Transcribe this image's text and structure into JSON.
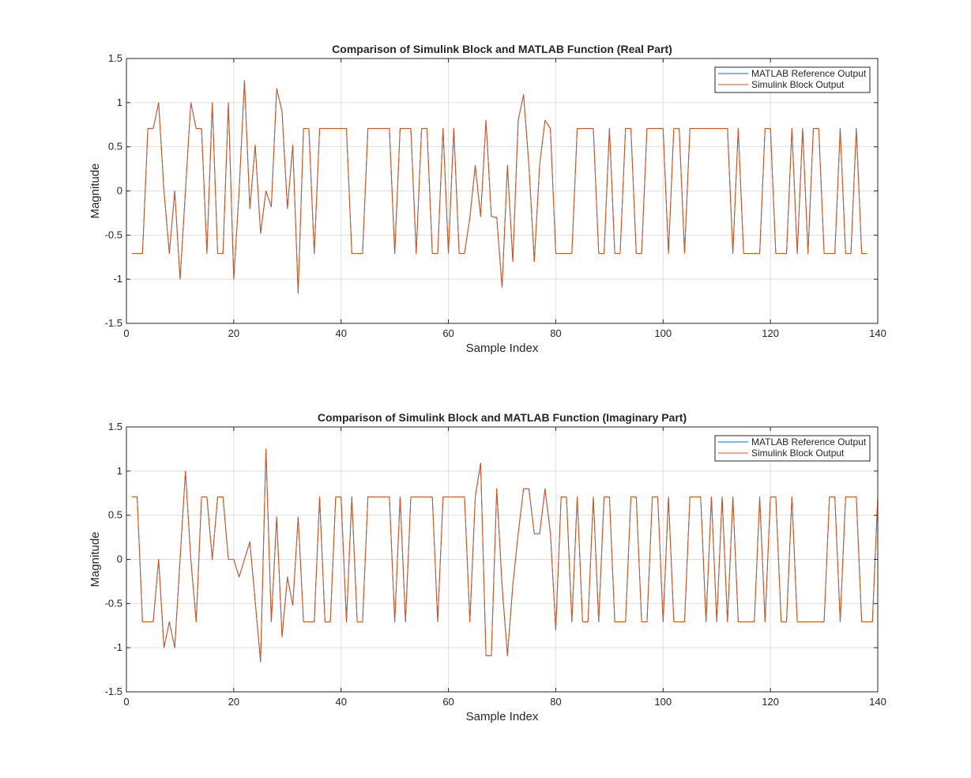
{
  "chart_data": [
    {
      "type": "line",
      "title": "Comparison of Simulink Block and MATLAB Function (Real Part)",
      "xlabel": "Sample Index",
      "ylabel": "Magnitude",
      "xlim": [
        0,
        140
      ],
      "ylim": [
        -1.5,
        1.5
      ],
      "xticks": [
        "0",
        "20",
        "40",
        "60",
        "80",
        "100",
        "120",
        "140"
      ],
      "yticks": [
        "-1.5",
        "-1",
        "-0.5",
        "0",
        "0.5",
        "1",
        "1.5"
      ],
      "grid": true,
      "legend_position": "top-right",
      "x_start": 1,
      "x_step": 1,
      "series": [
        {
          "name": "MATLAB Reference Output",
          "color": "#0072BD",
          "values": [
            -0.707,
            -0.707,
            -0.707,
            0.707,
            0.707,
            1,
            0,
            -0.707,
            0,
            -1,
            0,
            1,
            0.707,
            0.707,
            -0.707,
            1,
            -0.707,
            -0.707,
            1,
            -1,
            0,
            1.25,
            -0.2,
            0.52,
            -0.48,
            0,
            -0.18,
            1.16,
            0.9,
            -0.2,
            0.52,
            -1.16,
            0.707,
            0.707,
            -0.707,
            0.707,
            0.707,
            0.707,
            0.707,
            0.707,
            0.707,
            -0.707,
            -0.707,
            -0.707,
            0.707,
            0.707,
            0.707,
            0.707,
            0.707,
            -0.707,
            0.707,
            0.707,
            0.707,
            -0.707,
            0.707,
            0.707,
            -0.707,
            -0.707,
            0.707,
            -0.707,
            0.707,
            -0.707,
            -0.707,
            -0.3,
            0.29,
            -0.29,
            0.8,
            -0.29,
            -0.3,
            -1.09,
            0.29,
            -0.8,
            0.8,
            1.09,
            0.29,
            -0.8,
            0.3,
            0.8,
            0.707,
            -0.707,
            -0.707,
            -0.707,
            -0.707,
            0.707,
            0.707,
            0.707,
            0.707,
            -0.707,
            -0.707,
            0.707,
            -0.707,
            -0.707,
            0.707,
            0.707,
            -0.707,
            -0.707,
            0.707,
            0.707,
            0.707,
            0.707,
            -0.707,
            0.707,
            0.707,
            -0.707,
            0.707,
            0.707,
            0.707,
            0.707,
            0.707,
            0.707,
            0.707,
            0.707,
            -0.707,
            0.707,
            -0.707,
            -0.707,
            -0.707,
            -0.707,
            0.707,
            0.707,
            -0.707,
            -0.707,
            -0.707,
            0.707,
            -0.707,
            0.707,
            -0.707,
            0.707,
            0.707,
            -0.707,
            -0.707,
            -0.707,
            0.707,
            -0.707,
            -0.707,
            0.707,
            -0.707,
            -0.707
          ]
        },
        {
          "name": "Simulink Block Output",
          "color": "#D95319",
          "values": [
            -0.707,
            -0.707,
            -0.707,
            0.707,
            0.707,
            1,
            0,
            -0.707,
            0,
            -1,
            0,
            1,
            0.707,
            0.707,
            -0.707,
            1,
            -0.707,
            -0.707,
            1,
            -1,
            0,
            1.25,
            -0.2,
            0.52,
            -0.48,
            0,
            -0.18,
            1.16,
            0.9,
            -0.2,
            0.52,
            -1.16,
            0.707,
            0.707,
            -0.707,
            0.707,
            0.707,
            0.707,
            0.707,
            0.707,
            0.707,
            -0.707,
            -0.707,
            -0.707,
            0.707,
            0.707,
            0.707,
            0.707,
            0.707,
            -0.707,
            0.707,
            0.707,
            0.707,
            -0.707,
            0.707,
            0.707,
            -0.707,
            -0.707,
            0.707,
            -0.707,
            0.707,
            -0.707,
            -0.707,
            -0.3,
            0.29,
            -0.29,
            0.8,
            -0.29,
            -0.3,
            -1.09,
            0.29,
            -0.8,
            0.8,
            1.09,
            0.29,
            -0.8,
            0.3,
            0.8,
            0.707,
            -0.707,
            -0.707,
            -0.707,
            -0.707,
            0.707,
            0.707,
            0.707,
            0.707,
            -0.707,
            -0.707,
            0.707,
            -0.707,
            -0.707,
            0.707,
            0.707,
            -0.707,
            -0.707,
            0.707,
            0.707,
            0.707,
            0.707,
            -0.707,
            0.707,
            0.707,
            -0.707,
            0.707,
            0.707,
            0.707,
            0.707,
            0.707,
            0.707,
            0.707,
            0.707,
            -0.707,
            0.707,
            -0.707,
            -0.707,
            -0.707,
            -0.707,
            0.707,
            0.707,
            -0.707,
            -0.707,
            -0.707,
            0.707,
            -0.707,
            0.707,
            -0.707,
            0.707,
            0.707,
            -0.707,
            -0.707,
            -0.707,
            0.707,
            -0.707,
            -0.707,
            0.707,
            -0.707,
            -0.707
          ]
        }
      ]
    },
    {
      "type": "line",
      "title": "Comparison of Simulink Block and MATLAB Function (Imaginary Part)",
      "xlabel": "Sample Index",
      "ylabel": "Magnitude",
      "xlim": [
        0,
        140
      ],
      "ylim": [
        -1.5,
        1.5
      ],
      "xticks": [
        "0",
        "20",
        "40",
        "60",
        "80",
        "100",
        "120",
        "140"
      ],
      "yticks": [
        "-1.5",
        "-1",
        "-0.5",
        "0",
        "0.5",
        "1",
        "1.5"
      ],
      "grid": true,
      "legend_position": "top-right",
      "x_start": 1,
      "x_step": 1,
      "series": [
        {
          "name": "MATLAB Reference Output",
          "color": "#0072BD",
          "values": [
            0.707,
            0.707,
            -0.707,
            -0.707,
            -0.707,
            0,
            -1,
            -0.707,
            -1,
            0,
            1,
            0,
            -0.707,
            0.707,
            0.707,
            0,
            0.707,
            0.707,
            0,
            0,
            -0.2,
            0,
            0.2,
            -0.48,
            -1.16,
            1.25,
            -0.707,
            0.48,
            -0.88,
            -0.2,
            -0.52,
            0.48,
            -0.707,
            -0.707,
            -0.707,
            0.707,
            -0.707,
            -0.707,
            0.707,
            0.707,
            -0.707,
            0.707,
            -0.707,
            -0.707,
            0.707,
            0.707,
            0.707,
            0.707,
            0.707,
            -0.707,
            0.707,
            -0.707,
            0.707,
            0.707,
            0.707,
            0.707,
            0.707,
            -0.707,
            0.707,
            0.707,
            0.707,
            0.707,
            0.707,
            -0.707,
            0.707,
            1.09,
            -1.09,
            -1.09,
            0.8,
            -0.3,
            -1.09,
            -0.29,
            0.29,
            0.8,
            0.8,
            0.29,
            0.29,
            0.8,
            0.3,
            -0.8,
            0.707,
            0.707,
            -0.707,
            0.707,
            -0.707,
            -0.707,
            0.707,
            -0.707,
            0.707,
            0.707,
            -0.707,
            -0.707,
            -0.707,
            0.707,
            0.707,
            -0.707,
            -0.707,
            0.707,
            0.707,
            -0.707,
            0.707,
            -0.707,
            -0.707,
            -0.707,
            0.707,
            0.707,
            0.707,
            -0.707,
            0.707,
            -0.707,
            0.707,
            -0.707,
            0.707,
            -0.707,
            -0.707,
            -0.707,
            -0.707,
            0.707,
            -0.707,
            0.707,
            0.707,
            -0.707,
            -0.707,
            0.707,
            -0.707,
            -0.707,
            -0.707,
            -0.707,
            -0.707,
            -0.707,
            0.707,
            0.707,
            -0.707,
            0.707,
            0.707,
            0.707,
            -0.707,
            -0.707,
            -0.707,
            0.707
          ]
        },
        {
          "name": "Simulink Block Output",
          "color": "#D95319",
          "values": [
            0.707,
            0.707,
            -0.707,
            -0.707,
            -0.707,
            0,
            -1,
            -0.707,
            -1,
            0,
            1,
            0,
            -0.707,
            0.707,
            0.707,
            0,
            0.707,
            0.707,
            0,
            0,
            -0.2,
            0,
            0.2,
            -0.48,
            -1.16,
            1.25,
            -0.707,
            0.48,
            -0.88,
            -0.2,
            -0.52,
            0.48,
            -0.707,
            -0.707,
            -0.707,
            0.707,
            -0.707,
            -0.707,
            0.707,
            0.707,
            -0.707,
            0.707,
            -0.707,
            -0.707,
            0.707,
            0.707,
            0.707,
            0.707,
            0.707,
            -0.707,
            0.707,
            -0.707,
            0.707,
            0.707,
            0.707,
            0.707,
            0.707,
            -0.707,
            0.707,
            0.707,
            0.707,
            0.707,
            0.707,
            -0.707,
            0.707,
            1.09,
            -1.09,
            -1.09,
            0.8,
            -0.3,
            -1.09,
            -0.29,
            0.29,
            0.8,
            0.8,
            0.29,
            0.29,
            0.8,
            0.3,
            -0.8,
            0.707,
            0.707,
            -0.707,
            0.707,
            -0.707,
            -0.707,
            0.707,
            -0.707,
            0.707,
            0.707,
            -0.707,
            -0.707,
            -0.707,
            0.707,
            0.707,
            -0.707,
            -0.707,
            0.707,
            0.707,
            -0.707,
            0.707,
            -0.707,
            -0.707,
            -0.707,
            0.707,
            0.707,
            0.707,
            -0.707,
            0.707,
            -0.707,
            0.707,
            -0.707,
            0.707,
            -0.707,
            -0.707,
            -0.707,
            -0.707,
            0.707,
            -0.707,
            0.707,
            0.707,
            -0.707,
            -0.707,
            0.707,
            -0.707,
            -0.707,
            -0.707,
            -0.707,
            -0.707,
            -0.707,
            0.707,
            0.707,
            -0.707,
            0.707,
            0.707,
            0.707,
            -0.707,
            -0.707,
            -0.707,
            0.707
          ]
        }
      ]
    }
  ]
}
